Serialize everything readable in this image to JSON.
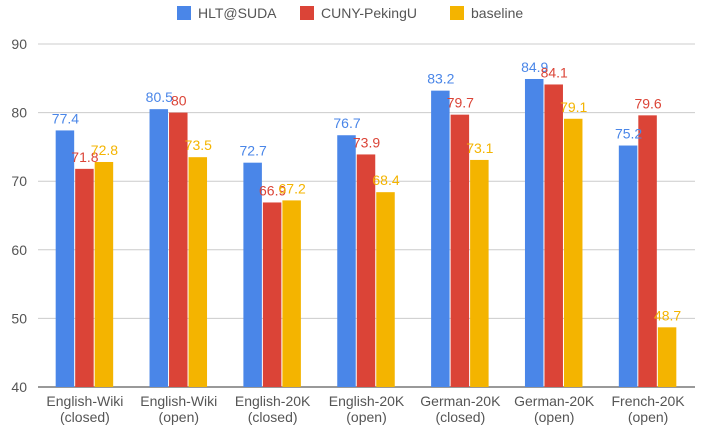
{
  "chart_data": {
    "type": "bar",
    "categories": [
      [
        "English-Wiki",
        "(closed)"
      ],
      [
        "English-Wiki",
        "(open)"
      ],
      [
        "English-20K",
        "(closed)"
      ],
      [
        "English-20K",
        "(open)"
      ],
      [
        "German-20K",
        "(closed)"
      ],
      [
        "German-20K",
        "(open)"
      ],
      [
        "French-20K",
        "(open)"
      ]
    ],
    "series": [
      {
        "name": "HLT@SUDA",
        "color": "#4a86e8",
        "values": [
          77.4,
          80.5,
          72.7,
          76.7,
          83.2,
          84.9,
          75.2
        ],
        "labels": [
          "77.4",
          "80.5",
          "72.7",
          "76.7",
          "83.2",
          "84.9",
          "75.2"
        ]
      },
      {
        "name": "CUNY-PekingU",
        "color": "#db4437",
        "values": [
          71.8,
          80,
          66.9,
          73.9,
          79.7,
          84.1,
          79.6
        ],
        "labels": [
          "71.8",
          "80",
          "66.9",
          "73.9",
          "79.7",
          "84.1",
          "79.6"
        ]
      },
      {
        "name": "baseline",
        "color": "#f4b400",
        "values": [
          72.8,
          73.5,
          67.2,
          68.4,
          73.1,
          79.1,
          48.7
        ],
        "labels": [
          "72.8",
          "73.5",
          "67.2",
          "68.4",
          "73.1",
          "79.1",
          "48.7"
        ]
      }
    ],
    "y_ticks": [
      "40",
      "50",
      "60",
      "70",
      "80",
      "90"
    ],
    "ylim": [
      40,
      90
    ],
    "grid": true,
    "legend_position": "top-center",
    "title": "",
    "xlabel": "",
    "ylabel": ""
  }
}
